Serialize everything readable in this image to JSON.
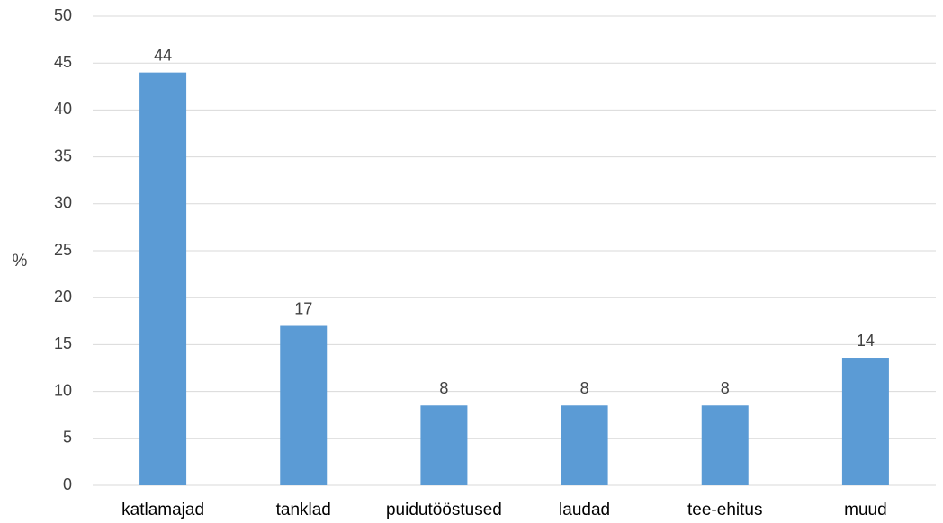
{
  "chart_data": {
    "type": "bar",
    "title": "",
    "xlabel": "",
    "ylabel": "%",
    "ylim": [
      0,
      50
    ],
    "yticks": [
      0,
      5,
      10,
      15,
      20,
      25,
      30,
      35,
      40,
      45,
      50
    ],
    "grid": true,
    "legend": "none",
    "bar_color": "#5b9bd5",
    "categories": [
      "katlamajad",
      "tanklad",
      "puidutööstused",
      "laudad",
      "tee-ehitus",
      "muud"
    ],
    "values": [
      44,
      17,
      8.5,
      8.5,
      8.5,
      13.6
    ],
    "data_labels": [
      "44",
      "17",
      "8",
      "8",
      "8",
      "14"
    ]
  }
}
